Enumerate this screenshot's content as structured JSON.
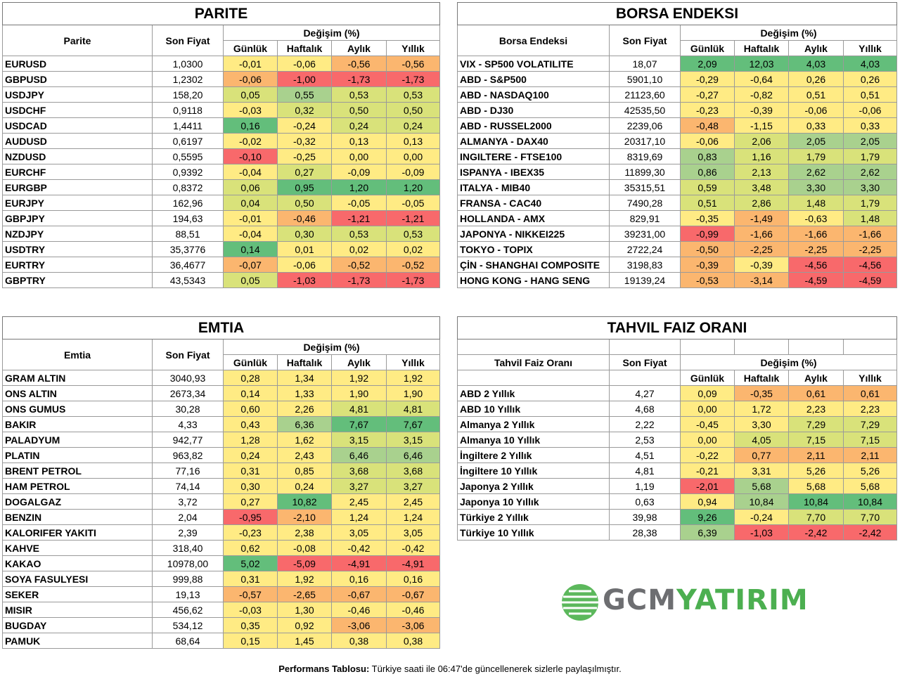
{
  "colors": {
    "green_strong": "#63be7b",
    "green": "#a9d18e",
    "yellow_green": "#d9e27a",
    "yellow": "#ffeb84",
    "orange": "#fbb66f",
    "red": "#f8696b"
  },
  "parite": {
    "title": "PARITE",
    "col_name": "Parite",
    "col_price": "Son Fiyat",
    "col_change": "Değişim (%)",
    "periods": [
      "Günlük",
      "Haftalık",
      "Aylık",
      "Yıllık"
    ],
    "rows": [
      {
        "name": "EURUSD",
        "price": "1,0300",
        "values": [
          "-0,01",
          "-0,06",
          "-0,56",
          "-0,56"
        ]
      },
      {
        "name": "GBPUSD",
        "price": "1,2302",
        "values": [
          "-0,06",
          "-1,00",
          "-1,73",
          "-1,73"
        ]
      },
      {
        "name": "USDJPY",
        "price": "158,20",
        "values": [
          "0,05",
          "0,55",
          "0,53",
          "0,53"
        ]
      },
      {
        "name": "USDCHF",
        "price": "0,9118",
        "values": [
          "-0,03",
          "0,32",
          "0,50",
          "0,50"
        ]
      },
      {
        "name": "USDCAD",
        "price": "1,4411",
        "values": [
          "0,16",
          "-0,24",
          "0,24",
          "0,24"
        ]
      },
      {
        "name": "AUDUSD",
        "price": "0,6197",
        "values": [
          "-0,02",
          "-0,32",
          "0,13",
          "0,13"
        ]
      },
      {
        "name": "NZDUSD",
        "price": "0,5595",
        "values": [
          "-0,10",
          "-0,25",
          "0,00",
          "0,00"
        ]
      },
      {
        "name": "EURCHF",
        "price": "0,9392",
        "values": [
          "-0,04",
          "0,27",
          "-0,09",
          "-0,09"
        ]
      },
      {
        "name": "EURGBP",
        "price": "0,8372",
        "values": [
          "0,06",
          "0,95",
          "1,20",
          "1,20"
        ]
      },
      {
        "name": "EURJPY",
        "price": "162,96",
        "values": [
          "0,04",
          "0,50",
          "-0,05",
          "-0,05"
        ]
      },
      {
        "name": "GBPJPY",
        "price": "194,63",
        "values": [
          "-0,01",
          "-0,46",
          "-1,21",
          "-1,21"
        ]
      },
      {
        "name": "NZDJPY",
        "price": "88,51",
        "values": [
          "-0,04",
          "0,30",
          "0,53",
          "0,53"
        ]
      },
      {
        "name": "USDTRY",
        "price": "35,3776",
        "values": [
          "0,14",
          "0,01",
          "0,02",
          "0,02"
        ]
      },
      {
        "name": "EURTRY",
        "price": "36,4677",
        "values": [
          "-0,07",
          "-0,06",
          "-0,52",
          "-0,52"
        ]
      },
      {
        "name": "GBPTRY",
        "price": "43,5343",
        "values": [
          "0,05",
          "-1,03",
          "-1,73",
          "-1,73"
        ]
      }
    ]
  },
  "borsa": {
    "title": "BORSA ENDEKSI",
    "col_name": "Borsa Endeksi",
    "col_price": "Son Fiyat",
    "col_change": "Değişim (%)",
    "periods": [
      "Günlük",
      "Haftalık",
      "Aylık",
      "Yıllık"
    ],
    "rows": [
      {
        "name": "VIX  - SP500 VOLATILITE",
        "price": "18,07",
        "values": [
          "2,09",
          "12,03",
          "4,03",
          "4,03"
        ]
      },
      {
        "name": "ABD - S&P500",
        "price": "5901,10",
        "values": [
          "-0,29",
          "-0,64",
          "0,26",
          "0,26"
        ]
      },
      {
        "name": "ABD - NASDAQ100",
        "price": "21123,60",
        "values": [
          "-0,27",
          "-0,82",
          "0,51",
          "0,51"
        ]
      },
      {
        "name": "ABD - DJ30",
        "price": "42535,50",
        "values": [
          "-0,23",
          "-0,39",
          "-0,06",
          "-0,06"
        ]
      },
      {
        "name": "ABD - RUSSEL2000",
        "price": "2239,06",
        "values": [
          "-0,48",
          "-1,15",
          "0,33",
          "0,33"
        ]
      },
      {
        "name": "ALMANYA - DAX40",
        "price": "20317,10",
        "values": [
          "-0,06",
          "2,06",
          "2,05",
          "2,05"
        ]
      },
      {
        "name": "INGILTERE - FTSE100",
        "price": "8319,69",
        "values": [
          "0,83",
          "1,16",
          "1,79",
          "1,79"
        ]
      },
      {
        "name": "ISPANYA - IBEX35",
        "price": "11899,30",
        "values": [
          "0,86",
          "2,13",
          "2,62",
          "2,62"
        ]
      },
      {
        "name": "ITALYA - MIB40",
        "price": "35315,51",
        "values": [
          "0,59",
          "3,48",
          "3,30",
          "3,30"
        ]
      },
      {
        "name": "FRANSA - CAC40",
        "price": "7490,28",
        "values": [
          "0,51",
          "2,86",
          "1,48",
          "1,79"
        ]
      },
      {
        "name": "HOLLANDA - AMX",
        "price": "829,91",
        "values": [
          "-0,35",
          "-1,49",
          "-0,63",
          "1,48"
        ]
      },
      {
        "name": "JAPONYA - NIKKEI225",
        "price": "39231,00",
        "values": [
          "-0,99",
          "-1,66",
          "-1,66",
          "-1,66"
        ]
      },
      {
        "name": "TOKYO - TOPIX",
        "price": "2722,24",
        "values": [
          "-0,50",
          "-2,25",
          "-2,25",
          "-2,25"
        ]
      },
      {
        "name": "ÇİN - SHANGHAI COMPOSITE",
        "price": "3198,83",
        "values": [
          "-0,39",
          "-0,39",
          "-4,56",
          "-4,56"
        ]
      },
      {
        "name": "HONG KONG - HANG SENG",
        "price": "19139,24",
        "values": [
          "-0,53",
          "-3,14",
          "-4,59",
          "-4,59"
        ]
      }
    ]
  },
  "emtia": {
    "title": "EMTIA",
    "col_name": "Emtia",
    "col_price": "Son Fiyat",
    "col_change": "Değişim (%)",
    "periods": [
      "Günlük",
      "Haftalık",
      "Aylık",
      "Yıllık"
    ],
    "rows": [
      {
        "name": "GRAM ALTIN",
        "price": "3040,93",
        "values": [
          "0,28",
          "1,34",
          "1,92",
          "1,92"
        ]
      },
      {
        "name": "ONS ALTIN",
        "price": "2673,34",
        "values": [
          "0,14",
          "1,33",
          "1,90",
          "1,90"
        ]
      },
      {
        "name": "ONS GUMUS",
        "price": "30,28",
        "values": [
          "0,60",
          "2,26",
          "4,81",
          "4,81"
        ]
      },
      {
        "name": "BAKIR",
        "price": "4,33",
        "values": [
          "0,43",
          "6,36",
          "7,67",
          "7,67"
        ]
      },
      {
        "name": "PALADYUM",
        "price": "942,77",
        "values": [
          "1,28",
          "1,62",
          "3,15",
          "3,15"
        ]
      },
      {
        "name": "PLATIN",
        "price": "963,82",
        "values": [
          "0,24",
          "2,43",
          "6,46",
          "6,46"
        ]
      },
      {
        "name": "BRENT PETROL",
        "price": "77,16",
        "values": [
          "0,31",
          "0,85",
          "3,68",
          "3,68"
        ]
      },
      {
        "name": "HAM PETROL",
        "price": "74,14",
        "values": [
          "0,30",
          "0,24",
          "3,27",
          "3,27"
        ]
      },
      {
        "name": "DOGALGAZ",
        "price": "3,72",
        "values": [
          "0,27",
          "10,82",
          "2,45",
          "2,45"
        ]
      },
      {
        "name": "BENZIN",
        "price": "2,04",
        "values": [
          "-0,95",
          "-2,10",
          "1,24",
          "1,24"
        ]
      },
      {
        "name": "KALORIFER YAKITI",
        "price": "2,39",
        "values": [
          "-0,23",
          "2,38",
          "3,05",
          "3,05"
        ]
      },
      {
        "name": "KAHVE",
        "price": "318,40",
        "values": [
          "0,62",
          "-0,08",
          "-0,42",
          "-0,42"
        ]
      },
      {
        "name": "KAKAO",
        "price": "10978,00",
        "values": [
          "5,02",
          "-5,09",
          "-4,91",
          "-4,91"
        ]
      },
      {
        "name": "SOYA FASULYESI",
        "price": "999,88",
        "values": [
          "0,31",
          "1,92",
          "0,16",
          "0,16"
        ]
      },
      {
        "name": "SEKER",
        "price": "19,13",
        "values": [
          "-0,57",
          "-2,65",
          "-0,67",
          "-0,67"
        ]
      },
      {
        "name": "MISIR",
        "price": "456,62",
        "values": [
          "-0,03",
          "1,30",
          "-0,46",
          "-0,46"
        ]
      },
      {
        "name": "BUGDAY",
        "price": "534,12",
        "values": [
          "0,35",
          "0,92",
          "-3,06",
          "-3,06"
        ]
      },
      {
        "name": "PAMUK",
        "price": "68,64",
        "values": [
          "0,15",
          "1,45",
          "0,38",
          "0,38"
        ]
      }
    ]
  },
  "tahvil": {
    "title": "TAHVIL FAIZ ORANI",
    "col_name": "Tahvil Faiz Oranı",
    "col_price": "Son Fiyat",
    "col_change": "Değişim (%)",
    "periods": [
      "Günlük",
      "Haftalık",
      "Aylık",
      "Yıllık"
    ],
    "rows": [
      {
        "name": "ABD 2 Yıllık",
        "price": "4,27",
        "values": [
          "0,09",
          "-0,35",
          "0,61",
          "0,61"
        ]
      },
      {
        "name": "ABD 10 Yıllık",
        "price": "4,68",
        "values": [
          "0,00",
          "1,72",
          "2,23",
          "2,23"
        ]
      },
      {
        "name": "Almanya 2 Yıllık",
        "price": "2,22",
        "values": [
          "-0,45",
          "3,30",
          "7,29",
          "7,29"
        ]
      },
      {
        "name": "Almanya 10 Yıllık",
        "price": "2,53",
        "values": [
          "0,00",
          "4,05",
          "7,15",
          "7,15"
        ]
      },
      {
        "name": "İngiltere 2 Yıllık",
        "price": "4,51",
        "values": [
          "-0,22",
          "0,77",
          "2,11",
          "2,11"
        ]
      },
      {
        "name": "İngiltere 10 Yıllık",
        "price": "4,81",
        "values": [
          "-0,21",
          "3,31",
          "5,26",
          "5,26"
        ]
      },
      {
        "name": "Japonya 2 Yıllık",
        "price": "1,19",
        "values": [
          "-2,01",
          "5,68",
          "5,68",
          "5,68"
        ]
      },
      {
        "name": "Japonya 10 Yıllık",
        "price": "0,63",
        "values": [
          "0,94",
          "10,84",
          "10,84",
          "10,84"
        ]
      },
      {
        "name": "Türkiye 2 Yıllık",
        "price": "39,98",
        "values": [
          "9,26",
          "-0,24",
          "7,70",
          "7,70"
        ]
      },
      {
        "name": "Türkiye 10 Yıllık",
        "price": "28,38",
        "values": [
          "6,39",
          "-1,03",
          "-2,42",
          "-2,42"
        ]
      }
    ]
  },
  "cell_colors": {
    "parite": [
      [
        "yellow",
        "yellow",
        "orange",
        "orange"
      ],
      [
        "orange",
        "red",
        "red",
        "red"
      ],
      [
        "yellow_green",
        "green",
        "yellow_green",
        "yellow_green"
      ],
      [
        "yellow",
        "yellow_green",
        "yellow_green",
        "yellow_green"
      ],
      [
        "green_strong",
        "yellow",
        "yellow_green",
        "yellow_green"
      ],
      [
        "yellow",
        "yellow",
        "yellow",
        "yellow"
      ],
      [
        "red",
        "yellow",
        "yellow",
        "yellow"
      ],
      [
        "yellow",
        "yellow_green",
        "yellow",
        "yellow"
      ],
      [
        "yellow_green",
        "green_strong",
        "green_strong",
        "green_strong"
      ],
      [
        "yellow_green",
        "yellow_green",
        "yellow",
        "yellow"
      ],
      [
        "yellow",
        "orange",
        "red",
        "red"
      ],
      [
        "yellow",
        "yellow_green",
        "yellow_green",
        "yellow_green"
      ],
      [
        "green_strong",
        "yellow",
        "yellow",
        "yellow"
      ],
      [
        "orange",
        "yellow",
        "orange",
        "orange"
      ],
      [
        "yellow_green",
        "red",
        "red",
        "red"
      ]
    ],
    "borsa": [
      [
        "green_strong",
        "green_strong",
        "green_strong",
        "green_strong"
      ],
      [
        "yellow",
        "yellow",
        "yellow",
        "yellow"
      ],
      [
        "yellow",
        "yellow",
        "yellow",
        "yellow"
      ],
      [
        "yellow",
        "yellow",
        "yellow",
        "yellow"
      ],
      [
        "orange",
        "yellow",
        "yellow",
        "yellow"
      ],
      [
        "yellow",
        "yellow_green",
        "green",
        "green"
      ],
      [
        "green",
        "yellow_green",
        "yellow_green",
        "yellow_green"
      ],
      [
        "green",
        "yellow_green",
        "green",
        "green"
      ],
      [
        "yellow_green",
        "yellow_green",
        "green",
        "green"
      ],
      [
        "yellow_green",
        "yellow_green",
        "yellow_green",
        "yellow_green"
      ],
      [
        "yellow",
        "orange",
        "yellow",
        "yellow_green"
      ],
      [
        "red",
        "orange",
        "orange",
        "orange"
      ],
      [
        "orange",
        "orange",
        "orange",
        "orange"
      ],
      [
        "orange",
        "yellow",
        "red",
        "red"
      ],
      [
        "orange",
        "orange",
        "red",
        "red"
      ]
    ],
    "emtia": [
      [
        "yellow",
        "yellow",
        "yellow",
        "yellow"
      ],
      [
        "yellow",
        "yellow",
        "yellow",
        "yellow"
      ],
      [
        "yellow",
        "yellow",
        "yellow_green",
        "yellow_green"
      ],
      [
        "yellow",
        "green",
        "green_strong",
        "green_strong"
      ],
      [
        "yellow",
        "yellow",
        "yellow_green",
        "yellow_green"
      ],
      [
        "yellow",
        "yellow",
        "green",
        "green"
      ],
      [
        "yellow",
        "yellow",
        "yellow_green",
        "yellow_green"
      ],
      [
        "yellow",
        "yellow",
        "yellow_green",
        "yellow_green"
      ],
      [
        "yellow",
        "green_strong",
        "yellow",
        "yellow"
      ],
      [
        "red",
        "orange",
        "yellow",
        "yellow"
      ],
      [
        "yellow",
        "yellow",
        "yellow",
        "yellow"
      ],
      [
        "yellow",
        "yellow",
        "yellow",
        "yellow"
      ],
      [
        "green_strong",
        "red",
        "red",
        "red"
      ],
      [
        "yellow",
        "yellow",
        "yellow",
        "yellow"
      ],
      [
        "orange",
        "orange",
        "orange",
        "orange"
      ],
      [
        "yellow",
        "yellow",
        "yellow",
        "yellow"
      ],
      [
        "yellow",
        "yellow",
        "orange",
        "orange"
      ],
      [
        "yellow",
        "yellow",
        "yellow",
        "yellow"
      ]
    ],
    "tahvil": [
      [
        "yellow",
        "orange",
        "orange",
        "orange"
      ],
      [
        "yellow",
        "yellow",
        "yellow",
        "yellow"
      ],
      [
        "yellow",
        "yellow",
        "yellow_green",
        "yellow_green"
      ],
      [
        "yellow",
        "yellow_green",
        "yellow_green",
        "yellow_green"
      ],
      [
        "yellow",
        "orange",
        "orange",
        "orange"
      ],
      [
        "yellow",
        "yellow",
        "yellow",
        "yellow"
      ],
      [
        "red",
        "green",
        "yellow",
        "yellow"
      ],
      [
        "yellow",
        "green",
        "green_strong",
        "green_strong"
      ],
      [
        "green_strong",
        "yellow",
        "yellow_green",
        "yellow_green"
      ],
      [
        "green",
        "red",
        "red",
        "red"
      ]
    ]
  },
  "brand": {
    "name_part1": "GCM",
    "name_part2": "YATIRIM"
  },
  "footer": {
    "bold": "Performans Tablosu:",
    "text": " Türkiye saati ile 06:47'de güncellenerek sizlerle paylaşılmıştır."
  }
}
